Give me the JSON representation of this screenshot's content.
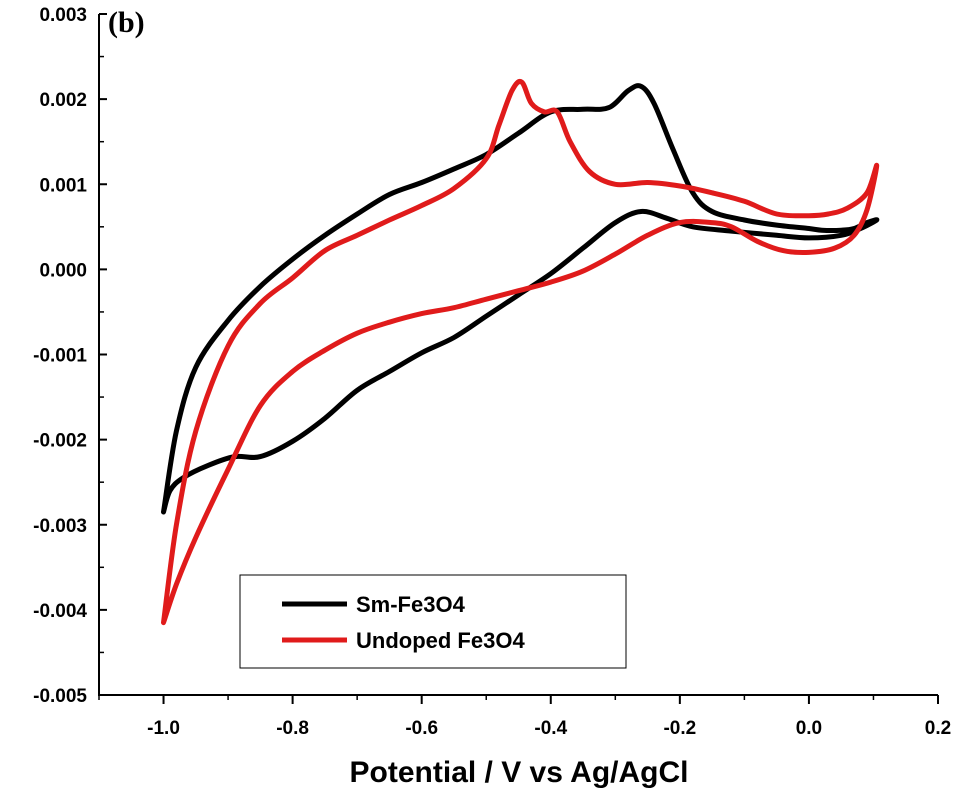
{
  "chart_data": {
    "type": "line",
    "panel_label": "(b)",
    "title": "",
    "xlabel": "Potential / V vs Ag/AgCl",
    "ylabel": "",
    "xlim": [
      -1.1,
      0.2
    ],
    "ylim": [
      -0.005,
      0.003
    ],
    "x_ticks": [
      -1.0,
      -0.8,
      -0.6,
      -0.4,
      -0.2,
      0.0,
      0.2
    ],
    "x_tick_labels": [
      "-1.0",
      "-0.8",
      "-0.6",
      "-0.4",
      "-0.2",
      "0.0",
      "0.2"
    ],
    "y_ticks": [
      -0.005,
      -0.004,
      -0.003,
      -0.002,
      -0.001,
      0.0,
      0.001,
      0.002,
      0.003
    ],
    "y_tick_labels": [
      "-0.005",
      "-0.004",
      "-0.003",
      "-0.002",
      "-0.001",
      "0.000",
      "0.001",
      "0.002",
      "0.003"
    ],
    "grid": false,
    "legend_position": "bottom-left",
    "series": [
      {
        "name": "Sm-Fe3O4",
        "color": "#000000",
        "points": [
          [
            -1.0,
            -0.00285
          ],
          [
            -0.99,
            -0.0026
          ],
          [
            -0.97,
            -0.00245
          ],
          [
            -0.93,
            -0.0023
          ],
          [
            -0.89,
            -0.0022
          ],
          [
            -0.85,
            -0.0022
          ],
          [
            -0.8,
            -0.00202
          ],
          [
            -0.75,
            -0.00175
          ],
          [
            -0.7,
            -0.00142
          ],
          [
            -0.65,
            -0.0012
          ],
          [
            -0.6,
            -0.00098
          ],
          [
            -0.55,
            -0.0008
          ],
          [
            -0.5,
            -0.00055
          ],
          [
            -0.45,
            -0.0003
          ],
          [
            -0.4,
            -5e-05
          ],
          [
            -0.35,
            0.00025
          ],
          [
            -0.3,
            0.00055
          ],
          [
            -0.26,
            0.00068
          ],
          [
            -0.22,
            0.0006
          ],
          [
            -0.18,
            0.0005
          ],
          [
            -0.12,
            0.00045
          ],
          [
            -0.05,
            0.0004
          ],
          [
            0.0,
            0.00037
          ],
          [
            0.05,
            0.0004
          ],
          [
            0.08,
            0.00048
          ],
          [
            0.105,
            0.00058
          ],
          [
            0.09,
            0.00055
          ],
          [
            0.07,
            0.00048
          ],
          [
            0.05,
            0.00046
          ],
          [
            0.02,
            0.00046
          ],
          [
            0.0,
            0.00048
          ],
          [
            -0.05,
            0.00052
          ],
          [
            -0.1,
            0.00058
          ],
          [
            -0.15,
            0.00068
          ],
          [
            -0.18,
            0.0009
          ],
          [
            -0.21,
            0.0014
          ],
          [
            -0.24,
            0.00195
          ],
          [
            -0.26,
            0.00215
          ],
          [
            -0.28,
            0.0021
          ],
          [
            -0.31,
            0.0019
          ],
          [
            -0.35,
            0.00188
          ],
          [
            -0.4,
            0.00185
          ],
          [
            -0.45,
            0.0016
          ],
          [
            -0.5,
            0.00135
          ],
          [
            -0.55,
            0.00118
          ],
          [
            -0.6,
            0.00102
          ],
          [
            -0.65,
            0.00088
          ],
          [
            -0.7,
            0.00065
          ],
          [
            -0.75,
            0.0004
          ],
          [
            -0.8,
            0.00012
          ],
          [
            -0.85,
            -0.0002
          ],
          [
            -0.9,
            -0.0006
          ],
          [
            -0.95,
            -0.00115
          ],
          [
            -0.98,
            -0.0019
          ],
          [
            -1.0,
            -0.00285
          ]
        ]
      },
      {
        "name": "Undoped Fe3O4",
        "color": "#e01b1b",
        "points": [
          [
            -1.0,
            -0.00415
          ],
          [
            -0.98,
            -0.0037
          ],
          [
            -0.95,
            -0.00315
          ],
          [
            -0.9,
            -0.00235
          ],
          [
            -0.85,
            -0.0016
          ],
          [
            -0.8,
            -0.0012
          ],
          [
            -0.75,
            -0.00095
          ],
          [
            -0.7,
            -0.00075
          ],
          [
            -0.65,
            -0.00062
          ],
          [
            -0.6,
            -0.00052
          ],
          [
            -0.55,
            -0.00045
          ],
          [
            -0.5,
            -0.00035
          ],
          [
            -0.45,
            -0.00025
          ],
          [
            -0.4,
            -0.00015
          ],
          [
            -0.35,
            -2e-05
          ],
          [
            -0.3,
            0.00018
          ],
          [
            -0.25,
            0.0004
          ],
          [
            -0.2,
            0.00055
          ],
          [
            -0.15,
            0.00055
          ],
          [
            -0.12,
            0.0005
          ],
          [
            -0.08,
            0.00033
          ],
          [
            -0.04,
            0.00022
          ],
          [
            0.0,
            0.0002
          ],
          [
            0.04,
            0.00025
          ],
          [
            0.07,
            0.0004
          ],
          [
            0.09,
            0.0007
          ],
          [
            0.105,
            0.00122
          ],
          [
            0.09,
            0.0009
          ],
          [
            0.06,
            0.00072
          ],
          [
            0.03,
            0.00065
          ],
          [
            0.0,
            0.00063
          ],
          [
            -0.05,
            0.00065
          ],
          [
            -0.1,
            0.0008
          ],
          [
            -0.15,
            0.0009
          ],
          [
            -0.2,
            0.00098
          ],
          [
            -0.25,
            0.00102
          ],
          [
            -0.3,
            0.001
          ],
          [
            -0.34,
            0.00115
          ],
          [
            -0.37,
            0.0015
          ],
          [
            -0.39,
            0.00185
          ],
          [
            -0.41,
            0.00185
          ],
          [
            -0.43,
            0.00195
          ],
          [
            -0.445,
            0.0022
          ],
          [
            -0.46,
            0.0021
          ],
          [
            -0.48,
            0.0017
          ],
          [
            -0.5,
            0.0013
          ],
          [
            -0.55,
            0.00095
          ],
          [
            -0.6,
            0.00075
          ],
          [
            -0.65,
            0.00058
          ],
          [
            -0.7,
            0.0004
          ],
          [
            -0.75,
            0.00022
          ],
          [
            -0.8,
            -0.0001
          ],
          [
            -0.85,
            -0.0004
          ],
          [
            -0.9,
            -0.0009
          ],
          [
            -0.95,
            -0.0019
          ],
          [
            -0.98,
            -0.003
          ],
          [
            -1.0,
            -0.00415
          ]
        ]
      }
    ]
  }
}
